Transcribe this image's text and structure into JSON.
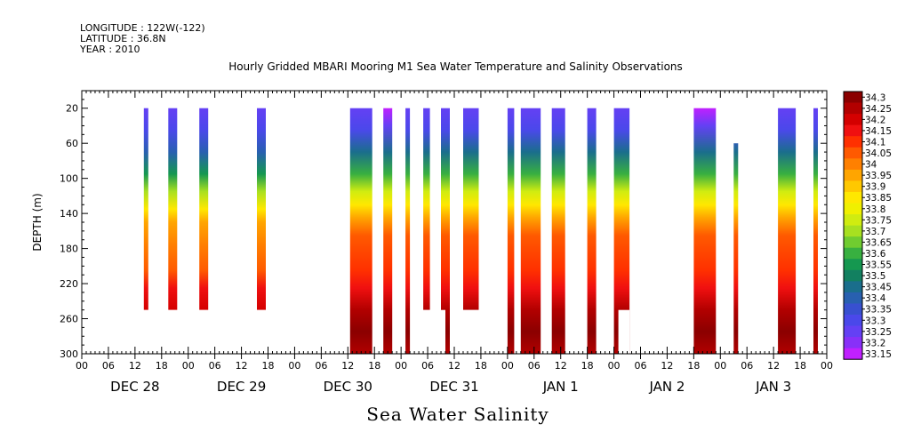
{
  "header": {
    "longitude": "LONGITUDE : 122W(-122)",
    "latitude": "LATITUDE : 36.8N",
    "year": "YEAR : 2010"
  },
  "chart_data": {
    "type": "heatmap",
    "title": "Hourly Gridded MBARI Mooring M1 Sea Water Temperature and Salinity Observations",
    "ylabel": "DEPTH (m)",
    "variable_label": "Sea Water Salinity",
    "x_unit": "hours since Dec 28 2010 00:00",
    "xlim": [
      0,
      168
    ],
    "ylim": [
      300,
      0
    ],
    "y_ticks": [
      20,
      60,
      100,
      140,
      180,
      220,
      260,
      300
    ],
    "hour_ticks": [
      "00",
      "06",
      "12",
      "18",
      "00",
      "06",
      "12",
      "18",
      "00",
      "06",
      "12",
      "18",
      "00",
      "06",
      "12",
      "18",
      "00",
      "06",
      "12",
      "18",
      "00",
      "06",
      "12",
      "18",
      "00",
      "06",
      "12",
      "18",
      "00"
    ],
    "day_labels": [
      {
        "label": "DEC 28",
        "hour": 12
      },
      {
        "label": "DEC 29",
        "hour": 36
      },
      {
        "label": "DEC 30",
        "hour": 60
      },
      {
        "label": "DEC 31",
        "hour": 84
      },
      {
        "label": "JAN 1",
        "hour": 108
      },
      {
        "label": "JAN 2",
        "hour": 132
      },
      {
        "label": "JAN 3",
        "hour": 156
      }
    ],
    "colorbar_levels": [
      "34.3",
      "34.25",
      "34.2",
      "34.15",
      "34.1",
      "34.05",
      "34",
      "33.95",
      "33.9",
      "33.85",
      "33.8",
      "33.75",
      "33.7",
      "33.65",
      "33.6",
      "33.55",
      "33.5",
      "33.45",
      "33.4",
      "33.35",
      "33.3",
      "33.25",
      "33.2",
      "33.15"
    ],
    "colorbar_colors": [
      "#8b0000",
      "#b20000",
      "#d40000",
      "#f01010",
      "#ff3000",
      "#ff5a00",
      "#ff8000",
      "#ffa500",
      "#ffc800",
      "#ffe800",
      "#f0f000",
      "#d0ec10",
      "#a8e020",
      "#70cc30",
      "#38b040",
      "#159850",
      "#128060",
      "#1a6e8c",
      "#2860b0",
      "#3850d0",
      "#4a48ea",
      "#6440f4",
      "#8830f8",
      "#c020ff"
    ],
    "data_segments": [
      {
        "start": 14.0,
        "end": 15.0,
        "top": 20,
        "bottom": 250,
        "variant": "a"
      },
      {
        "start": 19.5,
        "end": 21.5,
        "top": 20,
        "bottom": 250,
        "variant": "a"
      },
      {
        "start": 26.5,
        "end": 28.5,
        "top": 20,
        "bottom": 250,
        "variant": "a"
      },
      {
        "start": 39.5,
        "end": 41.5,
        "top": 20,
        "bottom": 250,
        "variant": "a"
      },
      {
        "start": 60.5,
        "end": 65.5,
        "top": 20,
        "bottom": 300,
        "variant": "b"
      },
      {
        "start": 68.0,
        "end": 70.0,
        "top": 20,
        "bottom": 300,
        "variant": "c"
      },
      {
        "start": 73.0,
        "end": 74.0,
        "top": 20,
        "bottom": 300,
        "variant": "b"
      },
      {
        "start": 77.0,
        "end": 78.5,
        "top": 20,
        "bottom": 250,
        "variant": "b"
      },
      {
        "start": 81.0,
        "end": 83.0,
        "top": 20,
        "bottom": 300,
        "variant": "b"
      },
      {
        "start": 86.0,
        "end": 89.5,
        "top": 20,
        "bottom": 250,
        "variant": "b"
      },
      {
        "start": 96.0,
        "end": 97.5,
        "top": 20,
        "bottom": 300,
        "variant": "b"
      },
      {
        "start": 99.0,
        "end": 103.5,
        "top": 20,
        "bottom": 300,
        "variant": "b"
      },
      {
        "start": 106.0,
        "end": 109.0,
        "top": 20,
        "bottom": 300,
        "variant": "b"
      },
      {
        "start": 114.0,
        "end": 116.0,
        "top": 20,
        "bottom": 300,
        "variant": "b"
      },
      {
        "start": 120.0,
        "end": 123.5,
        "top": 20,
        "bottom": 300,
        "variant": "b"
      },
      {
        "start": 138.0,
        "end": 143.0,
        "top": 20,
        "bottom": 300,
        "variant": "c"
      },
      {
        "start": 147.0,
        "end": 148.0,
        "top": 60,
        "bottom": 300,
        "variant": "b"
      },
      {
        "start": 157.0,
        "end": 161.0,
        "top": 20,
        "bottom": 300,
        "variant": "b"
      },
      {
        "start": 165.0,
        "end": 166.0,
        "top": 20,
        "bottom": 300,
        "variant": "b"
      }
    ],
    "gap_notches": [
      {
        "start": 81.0,
        "end": 82.0,
        "top": 250,
        "bottom": 300
      },
      {
        "start": 121.0,
        "end": 123.5,
        "top": 250,
        "bottom": 300
      }
    ]
  }
}
